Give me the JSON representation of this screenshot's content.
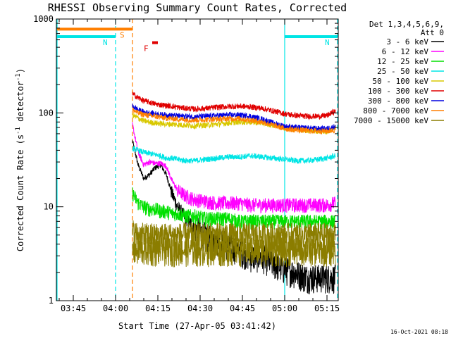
{
  "chart_data": {
    "type": "line",
    "title": "RHESSI Observing Summary Count Rates, Corrected",
    "xlabel": "Start Time (27-Apr-05 03:41:42)",
    "ylabel": "Corrected Count Rate (s⁻¹ detector⁻¹)",
    "ylabel_parts": {
      "main": "Corrected Count Rate (s",
      "sup1": "-1",
      "mid": " detector",
      "sup2": "-1",
      "end": ")"
    },
    "yscale": "log",
    "ylim": [
      1,
      1000
    ],
    "xlim": [
      "03:39",
      "05:19"
    ],
    "x_ticks": [
      "03:45",
      "04:00",
      "04:15",
      "04:30",
      "04:45",
      "05:00",
      "05:15"
    ],
    "y_ticks": [
      "1",
      "10",
      "100",
      "1000"
    ],
    "legend_header": [
      "Det 1,3,4,5,6,9,",
      "Att 0"
    ],
    "legend_position": "right",
    "timestamp": "16-Oct-2021 08:18",
    "flags": [
      {
        "label": "S",
        "color": "#ff7f00",
        "start": "03:39",
        "end": "04:06",
        "level": 780
      },
      {
        "label": "N",
        "color": "#00e5e5",
        "start": "03:39",
        "end": "04:00",
        "level": 650
      },
      {
        "label": "N",
        "color": "#00e5e5",
        "start": "05:00",
        "end": "05:19",
        "level": 650
      },
      {
        "label": "F",
        "color": "#e00000",
        "start": "04:13",
        "end": "04:15",
        "level": 560
      }
    ],
    "vlines": [
      {
        "time": "03:39",
        "color": "#00e5e5",
        "style": "solid"
      },
      {
        "time": "04:00",
        "color": "#00e5e5",
        "style": "dashed"
      },
      {
        "time": "04:06",
        "color": "#ff7f00",
        "style": "dashed"
      },
      {
        "time": "05:00",
        "color": "#00e5e5",
        "style": "solid"
      },
      {
        "time": "05:19",
        "color": "#00e5e5",
        "style": "dashed"
      }
    ],
    "data_start": "04:06",
    "series": [
      {
        "name": "3 - 6 keV",
        "color": "#000000",
        "x": [
          "04:06",
          "04:08",
          "04:10",
          "04:12",
          "04:14",
          "04:16",
          "04:18",
          "04:20",
          "04:22",
          "04:25",
          "04:28",
          "04:32",
          "04:36",
          "04:40",
          "04:44",
          "04:48",
          "04:52",
          "04:56",
          "05:00",
          "05:04",
          "05:08",
          "05:12",
          "05:15",
          "05:18"
        ],
        "y": [
          50,
          28,
          20,
          22,
          26,
          28,
          22,
          14,
          10,
          7.5,
          6,
          5,
          4.5,
          4,
          3.5,
          3,
          3,
          2.5,
          2.2,
          2,
          1.8,
          1.8,
          1.8,
          1.8
        ]
      },
      {
        "name": "6 - 12 keV",
        "color": "#ff00ff",
        "x": [
          "04:06",
          "04:08",
          "04:10",
          "04:12",
          "04:14",
          "04:16",
          "04:18",
          "04:20",
          "04:22",
          "04:25",
          "04:28",
          "04:32",
          "04:36",
          "04:40",
          "04:44",
          "04:48",
          "04:52",
          "04:56",
          "05:00",
          "05:04",
          "05:08",
          "05:12",
          "05:15",
          "05:18"
        ],
        "y": [
          75,
          38,
          28,
          30,
          29,
          29,
          27,
          19,
          15,
          13,
          12,
          11.5,
          11,
          11,
          11,
          10.5,
          10.5,
          10.5,
          10.5,
          10.5,
          10.5,
          10.5,
          10.5,
          11
        ]
      },
      {
        "name": "12 - 25 keV",
        "color": "#00e000",
        "x": [
          "04:06",
          "04:08",
          "04:10",
          "04:12",
          "04:14",
          "04:16",
          "04:18",
          "04:20",
          "04:22",
          "04:25",
          "04:28",
          "04:32",
          "04:36",
          "04:40",
          "04:44",
          "04:48",
          "04:52",
          "04:56",
          "05:00",
          "05:04",
          "05:08",
          "05:12",
          "05:15",
          "05:18"
        ],
        "y": [
          14,
          11,
          10,
          9.5,
          9.5,
          9,
          9,
          8.5,
          8.5,
          8,
          8,
          7.5,
          7.5,
          7.5,
          7,
          7,
          7,
          7,
          7,
          7,
          7,
          7,
          7,
          7
        ]
      },
      {
        "name": "25 - 50 keV",
        "color": "#00e5e5",
        "x": [
          "04:06",
          "04:08",
          "04:10",
          "04:12",
          "04:14",
          "04:16",
          "04:18",
          "04:20",
          "04:22",
          "04:25",
          "04:28",
          "04:32",
          "04:36",
          "04:40",
          "04:44",
          "04:48",
          "04:52",
          "04:56",
          "05:00",
          "05:04",
          "05:08",
          "05:12",
          "05:15",
          "05:18"
        ],
        "y": [
          42,
          40,
          38,
          37,
          36,
          35,
          33,
          33,
          32,
          31,
          31,
          32,
          33,
          34,
          34,
          35,
          34,
          33,
          32,
          31,
          31,
          32,
          33,
          35
        ]
      },
      {
        "name": "50 - 100 keV",
        "color": "#d8c800",
        "x": [
          "04:06",
          "04:08",
          "04:10",
          "04:12",
          "04:14",
          "04:16",
          "04:18",
          "04:20",
          "04:22",
          "04:25",
          "04:28",
          "04:32",
          "04:36",
          "04:40",
          "04:44",
          "04:48",
          "04:52",
          "04:56",
          "05:00",
          "05:04",
          "05:08",
          "05:12",
          "05:15",
          "05:18"
        ],
        "y": [
          95,
          88,
          82,
          80,
          78,
          77,
          76,
          76,
          75,
          74,
          73,
          74,
          76,
          78,
          80,
          80,
          78,
          74,
          70,
          67,
          65,
          64,
          63,
          70
        ]
      },
      {
        "name": "100 - 300 keV",
        "color": "#e00000",
        "x": [
          "04:06",
          "04:08",
          "04:10",
          "04:12",
          "04:14",
          "04:16",
          "04:18",
          "04:20",
          "04:22",
          "04:25",
          "04:28",
          "04:32",
          "04:36",
          "04:40",
          "04:44",
          "04:48",
          "04:52",
          "04:56",
          "05:00",
          "05:04",
          "05:08",
          "05:12",
          "05:15",
          "05:18"
        ],
        "y": [
          160,
          145,
          135,
          130,
          125,
          122,
          120,
          118,
          115,
          112,
          110,
          112,
          115,
          117,
          118,
          116,
          112,
          105,
          98,
          94,
          92,
          92,
          94,
          105
        ]
      },
      {
        "name": "300 - 800 keV",
        "color": "#0000e0",
        "x": [
          "04:06",
          "04:08",
          "04:10",
          "04:12",
          "04:14",
          "04:16",
          "04:18",
          "04:20",
          "04:22",
          "04:25",
          "04:28",
          "04:32",
          "04:36",
          "04:40",
          "04:44",
          "04:48",
          "04:52",
          "04:56",
          "05:00",
          "05:04",
          "05:08",
          "05:12",
          "05:15",
          "05:18"
        ],
        "y": [
          118,
          108,
          102,
          100,
          98,
          96,
          95,
          94,
          93,
          92,
          91,
          92,
          94,
          95,
          95,
          92,
          86,
          78,
          72,
          70,
          69,
          68,
          68,
          72
        ]
      },
      {
        "name": "800 - 7000 keV",
        "color": "#ff7f00",
        "x": [
          "04:06",
          "04:08",
          "04:10",
          "04:12",
          "04:14",
          "04:16",
          "04:18",
          "04:20",
          "04:22",
          "04:25",
          "04:28",
          "04:32",
          "04:36",
          "04:40",
          "04:44",
          "04:48",
          "04:52",
          "04:56",
          "05:00",
          "05:04",
          "05:08",
          "05:12",
          "05:15",
          "05:18"
        ],
        "y": [
          108,
          100,
          96,
          94,
          92,
          90,
          88,
          87,
          86,
          85,
          84,
          85,
          86,
          87,
          87,
          84,
          80,
          74,
          68,
          66,
          65,
          64,
          64,
          66
        ]
      },
      {
        "name": "7000 - 15000 keV",
        "color": "#8b7d00",
        "x": [
          "04:06",
          "04:08",
          "04:10",
          "04:12",
          "04:14",
          "04:16",
          "04:18",
          "04:20",
          "04:22",
          "04:25",
          "04:28",
          "04:32",
          "04:36",
          "04:40",
          "04:44",
          "04:48",
          "04:52",
          "04:56",
          "05:00",
          "05:04",
          "05:08",
          "05:12",
          "05:15",
          "05:18"
        ],
        "y": [
          5.5,
          5,
          5,
          5,
          5,
          5,
          5,
          5,
          5,
          5,
          5,
          5,
          5,
          5,
          5,
          5,
          5,
          5,
          5,
          5,
          5,
          5,
          5,
          5
        ]
      },
      {
        "name": "",
        "color": "#8b7d00",
        "x": [
          "04:06",
          "04:08",
          "04:10",
          "04:12",
          "04:14",
          "04:16",
          "04:18",
          "04:20",
          "04:22",
          "04:25",
          "04:28",
          "04:32",
          "04:36",
          "04:40",
          "04:44",
          "04:48",
          "04:52",
          "04:56",
          "05:00",
          "05:04",
          "05:08",
          "05:12",
          "05:15",
          "05:18"
        ],
        "y": [
          3.5,
          3.5,
          3.5,
          3.5,
          3.5,
          3.5,
          3.5,
          3.5,
          3.5,
          3.5,
          3.5,
          3.5,
          3.5,
          3.5,
          3.5,
          3.5,
          3.5,
          3.5,
          3.5,
          3.5,
          3.5,
          3.5,
          3.5,
          3.5
        ]
      }
    ]
  }
}
